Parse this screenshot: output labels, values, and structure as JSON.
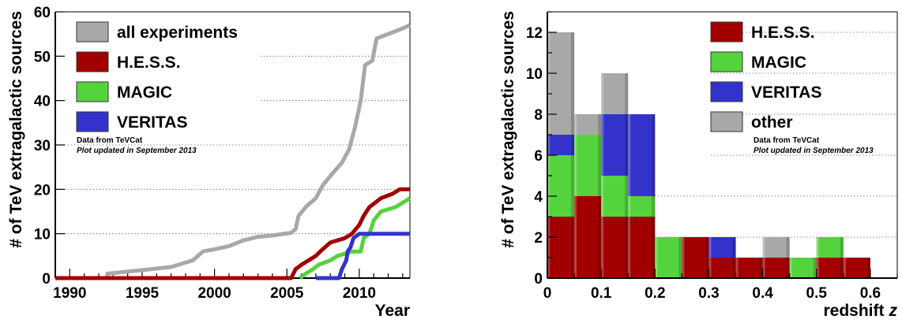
{
  "chart_data": [
    {
      "type": "line",
      "title": "",
      "xlabel": "Year",
      "ylabel": "# of TeV extragalactic sources",
      "xlim": [
        1989,
        2013.5
      ],
      "ylim": [
        0,
        60
      ],
      "x_ticks": [
        "1990",
        "1995",
        "2000",
        "2005",
        "2010"
      ],
      "y_ticks": [
        "0",
        "10",
        "20",
        "30",
        "40",
        "50",
        "60"
      ],
      "legend_position": "top-left",
      "notes": [
        "Data from TeVCat",
        "Plot updated in September 2013"
      ],
      "series": [
        {
          "name": "all experiments",
          "color": "#a8a8a8",
          "points": [
            [
              1989,
              0
            ],
            [
              1992.6,
              0
            ],
            [
              1992.6,
              1
            ],
            [
              1995,
              1.8
            ],
            [
              1997,
              2.5
            ],
            [
              1998.5,
              4
            ],
            [
              1999.2,
              6
            ],
            [
              2000,
              6.5
            ],
            [
              2001,
              7.2
            ],
            [
              2002,
              8.5
            ],
            [
              2003,
              9.3
            ],
            [
              2004,
              9.6
            ],
            [
              2005.3,
              10.2
            ],
            [
              2005.6,
              11
            ],
            [
              2005.8,
              14
            ],
            [
              2006.3,
              16
            ],
            [
              2007,
              18
            ],
            [
              2007.5,
              21
            ],
            [
              2008,
              23
            ],
            [
              2008.8,
              26
            ],
            [
              2009.3,
              29
            ],
            [
              2009.7,
              34
            ],
            [
              2010.1,
              40
            ],
            [
              2010.4,
              48
            ],
            [
              2010.9,
              49
            ],
            [
              2011.2,
              54
            ],
            [
              2012,
              55
            ],
            [
              2012.8,
              56
            ],
            [
              2013.5,
              57
            ]
          ]
        },
        {
          "name": "H.E.S.S.",
          "color": "#a20000",
          "points": [
            [
              1989,
              0
            ],
            [
              2005.3,
              0
            ],
            [
              2005.6,
              2
            ],
            [
              2006,
              3
            ],
            [
              2006.5,
              4
            ],
            [
              2007,
              5
            ],
            [
              2007.3,
              6
            ],
            [
              2008,
              8
            ],
            [
              2009,
              9
            ],
            [
              2009.5,
              10
            ],
            [
              2010,
              12
            ],
            [
              2010.3,
              14
            ],
            [
              2010.7,
              16
            ],
            [
              2011.5,
              18
            ],
            [
              2012.3,
              19
            ],
            [
              2012.8,
              20
            ],
            [
              2013.5,
              20
            ]
          ]
        },
        {
          "name": "MAGIC",
          "color": "#55d33d",
          "points": [
            [
              2005.9,
              0
            ],
            [
              2006.3,
              1
            ],
            [
              2006.8,
              2
            ],
            [
              2007.2,
              3
            ],
            [
              2008,
              4
            ],
            [
              2008.5,
              5
            ],
            [
              2009.5,
              6
            ],
            [
              2010.1,
              6
            ],
            [
              2010.3,
              9
            ],
            [
              2010.7,
              10
            ],
            [
              2011,
              13
            ],
            [
              2011.5,
              15
            ],
            [
              2012.5,
              16
            ],
            [
              2013.5,
              18
            ]
          ]
        },
        {
          "name": "VERITAS",
          "color": "#3333cc",
          "points": [
            [
              2007,
              0
            ],
            [
              2008.6,
              0
            ],
            [
              2008.8,
              2
            ],
            [
              2009.1,
              4
            ],
            [
              2009.2,
              6
            ],
            [
              2009.4,
              7
            ],
            [
              2009.6,
              9
            ],
            [
              2010,
              10
            ],
            [
              2013.5,
              10
            ]
          ]
        }
      ]
    },
    {
      "type": "bar",
      "title": "",
      "xlabel": "redshift",
      "xlabel_symbol": "z",
      "ylabel": "# of TeV extragalactic sources",
      "xlim": [
        0,
        0.65
      ],
      "ylim": [
        0,
        13
      ],
      "x_ticks": [
        "0",
        "0.1",
        "0.2",
        "0.3",
        "0.4",
        "0.5",
        "0.6"
      ],
      "y_ticks": [
        "0",
        "2",
        "4",
        "6",
        "8",
        "10",
        "12"
      ],
      "stacked": true,
      "bin_width": 0.05,
      "bin_starts": [
        0,
        0.05,
        0.1,
        0.15,
        0.2,
        0.25,
        0.3,
        0.35,
        0.4,
        0.45,
        0.5,
        0.55
      ],
      "legend_position": "top-right",
      "notes": [
        "Data from TeVCat",
        "Plot updated in September 2013"
      ],
      "series": [
        {
          "name": "H.E.S.S.",
          "color": "#a20000",
          "values": [
            3,
            4,
            3,
            3,
            0,
            2,
            1,
            1,
            1,
            0,
            1,
            1
          ]
        },
        {
          "name": "MAGIC",
          "color": "#55d33d",
          "values": [
            3,
            3,
            2,
            1,
            2,
            0,
            0,
            0,
            0,
            1,
            1,
            0
          ]
        },
        {
          "name": "VERITAS",
          "color": "#3333cc",
          "values": [
            1,
            0,
            3,
            4,
            0,
            0,
            1,
            0,
            0,
            0,
            0,
            0
          ]
        },
        {
          "name": "other",
          "color": "#a8a8a8",
          "values": [
            5,
            1,
            2,
            0,
            0,
            0,
            0,
            0,
            1,
            0,
            0,
            0
          ]
        }
      ]
    }
  ]
}
